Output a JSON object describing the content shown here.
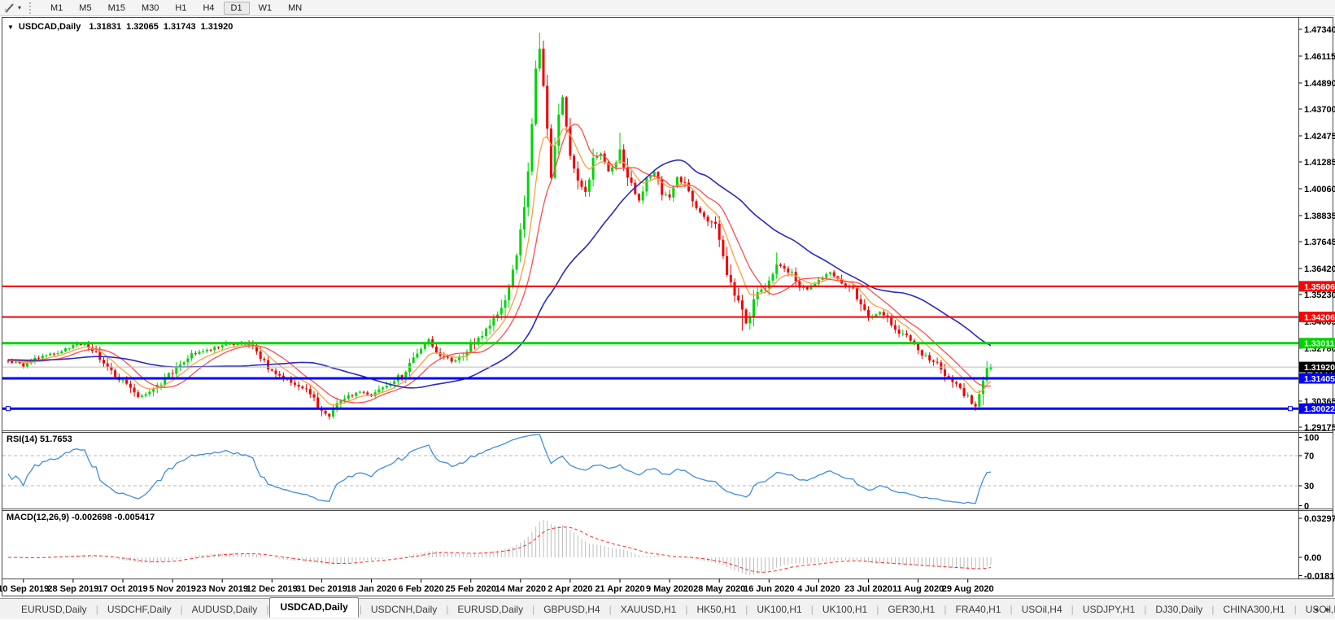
{
  "toolbar": {
    "timeframes": [
      "M1",
      "M5",
      "M15",
      "M30",
      "H1",
      "H4",
      "D1",
      "W1",
      "MN"
    ],
    "active_timeframe": "D1",
    "caret": "▾"
  },
  "chart": {
    "dropdown_glyph": "▼",
    "symbol_label": "USDCAD,Daily",
    "quote": {
      "open": "1.31831",
      "high": "1.32065",
      "low": "1.31743",
      "close": "1.31920"
    }
  },
  "price_axis": {
    "ticks": [
      "1.47340",
      "1.46115",
      "1.44890",
      "1.43700",
      "1.42475",
      "1.41285",
      "1.40060",
      "1.38835",
      "1.37645",
      "1.36420",
      "1.35230",
      "1.34005",
      "1.32780",
      "1.31555",
      "1.30365",
      "1.29175"
    ]
  },
  "levels": [
    {
      "price": 1.35606,
      "label": "1.35606",
      "color": "#ff0000",
      "thickness": 2,
      "selected": false
    },
    {
      "price": 1.34206,
      "label": "1.34206",
      "color": "#ff0000",
      "thickness": 2,
      "selected": false
    },
    {
      "price": 1.33011,
      "label": "1.33011",
      "color": "#00d300",
      "thickness": 3,
      "selected": false
    },
    {
      "price": 1.31405,
      "label": "1.31405",
      "color": "#0000ff",
      "thickness": 3,
      "selected": false
    },
    {
      "price": 1.30022,
      "label": "1.30022",
      "color": "#0000ff",
      "thickness": 3,
      "selected": true
    }
  ],
  "current_price": {
    "value": 1.3192,
    "label": "1.31920",
    "line_color": "#bdbdbd",
    "box_color": "#000000"
  },
  "rsi": {
    "label": "RSI(14) 51.7653",
    "period": 14,
    "value": 51.7653,
    "ticks": [
      "100",
      "70",
      "30",
      "0"
    ],
    "guide_levels": [
      70,
      30
    ],
    "line_color": "#3f8ede"
  },
  "macd": {
    "label": "MACD(12,26,9) -0.002698 -0.005417",
    "params": "12,26,9",
    "value": -0.002698,
    "signal": -0.005417,
    "ticks": [
      "0.032972",
      "0.00",
      "-0.018154"
    ],
    "hist_color": "#bdbdbd",
    "signal_color": "#ff2a2a"
  },
  "dates": [
    "10 Sep 2019",
    "28 Sep 2019",
    "17 Oct 2019",
    "5 Nov 2019",
    "23 Nov 2019",
    "12 Dec 2019",
    "31 Dec 2019",
    "18 Jan 2020",
    "6 Feb 2020",
    "25 Feb 2020",
    "14 Mar 2020",
    "2 Apr 2020",
    "21 Apr 2020",
    "9 May 2020",
    "28 May 2020",
    "16 Jun 2020",
    "4 Jul 2020",
    "23 Jul 2020",
    "11 Aug 2020",
    "29 Aug 2020"
  ],
  "tabs": {
    "items": [
      "EURUSD,Daily",
      "USDCHF,Daily",
      "AUDUSD,Daily",
      "USDCAD,Daily",
      "USDCNH,Daily",
      "EURUSD,Daily",
      "GBPUSD,H4",
      "XAUUSD,H1",
      "HK50,H1",
      "UK100,H1",
      "UK100,H1",
      "GER30,H1",
      "FRA40,H1",
      "USOil,H4",
      "USDJPY,H1",
      "DJ30,Daily",
      "CHINA300,H1",
      "USOil,H1"
    ],
    "active_index": 3,
    "scroll_left": "◂",
    "scroll_right": "▸"
  },
  "chart_data": {
    "type": "candlestick",
    "symbol": "USDCAD",
    "timeframe": "Daily",
    "candle_count": 258,
    "price_range": {
      "top": 1.477,
      "bottom": 1.2905
    },
    "colors": {
      "bull": "#00d40a",
      "bear": "#f00000",
      "ma_fast": "#ff9f40",
      "ma_mid": "#ff4d4d",
      "ma_slow": "#2a2ac4"
    },
    "moving_averages": [
      {
        "type": "ema",
        "period": 8,
        "color_key": "ma_fast"
      },
      {
        "type": "sma",
        "period": 13,
        "color_key": "ma_mid"
      },
      {
        "type": "sma",
        "period": 40,
        "color_key": "ma_slow"
      }
    ],
    "indicators": [
      {
        "name": "RSI",
        "period": 14,
        "current": 51.7653
      },
      {
        "name": "MACD",
        "fast": 12,
        "slow": 26,
        "signal": 9,
        "current": -0.002698,
        "current_signal": -0.005417
      }
    ],
    "last_candle": {
      "open": 1.31831,
      "high": 1.32065,
      "low": 1.31743,
      "close": 1.3192
    },
    "spikes": [
      {
        "i": 139,
        "high": 1.4718
      },
      {
        "i": 160,
        "high": 1.4262
      },
      {
        "i": 201,
        "high": 1.3715
      },
      {
        "i": 84,
        "low": 1.2952
      },
      {
        "i": 192,
        "low": 1.3358
      },
      {
        "i": 253,
        "low": 1.2992
      }
    ],
    "waypoints": [
      [
        0,
        1.3225
      ],
      [
        4,
        1.32
      ],
      [
        9,
        1.3245
      ],
      [
        14,
        1.3262
      ],
      [
        17,
        1.3288
      ],
      [
        20,
        1.3302
      ],
      [
        23,
        1.3258
      ],
      [
        26,
        1.3185
      ],
      [
        30,
        1.313
      ],
      [
        34,
        1.3052
      ],
      [
        38,
        1.3085
      ],
      [
        43,
        1.317
      ],
      [
        48,
        1.3245
      ],
      [
        52,
        1.3272
      ],
      [
        56,
        1.3295
      ],
      [
        60,
        1.33
      ],
      [
        64,
        1.3282
      ],
      [
        69,
        1.3172
      ],
      [
        74,
        1.3125
      ],
      [
        78,
        1.3082
      ],
      [
        82,
        1.2998
      ],
      [
        84,
        1.2962
      ],
      [
        87,
        1.304
      ],
      [
        91,
        1.3078
      ],
      [
        95,
        1.3062
      ],
      [
        99,
        1.3105
      ],
      [
        103,
        1.316
      ],
      [
        106,
        1.3235
      ],
      [
        108,
        1.3282
      ],
      [
        110,
        1.3312
      ],
      [
        113,
        1.3248
      ],
      [
        116,
        1.3222
      ],
      [
        119,
        1.3246
      ],
      [
        121,
        1.3285
      ],
      [
        124,
        1.3345
      ],
      [
        127,
        1.3412
      ],
      [
        129,
        1.3468
      ],
      [
        131,
        1.356
      ],
      [
        133,
        1.3728
      ],
      [
        135,
        1.392
      ],
      [
        136,
        1.4088
      ],
      [
        137,
        1.4285
      ],
      [
        138,
        1.458
      ],
      [
        139,
        1.464
      ],
      [
        140,
        1.448
      ],
      [
        141,
        1.4265
      ],
      [
        142,
        1.4068
      ],
      [
        143,
        1.418
      ],
      [
        144,
        1.435
      ],
      [
        145,
        1.442
      ],
      [
        146,
        1.43
      ],
      [
        147,
        1.4165
      ],
      [
        149,
        1.4035
      ],
      [
        151,
        1.3985
      ],
      [
        153,
        1.413
      ],
      [
        155,
        1.4168
      ],
      [
        157,
        1.408
      ],
      [
        159,
        1.4135
      ],
      [
        160,
        1.418
      ],
      [
        161,
        1.4105
      ],
      [
        163,
        1.402
      ],
      [
        165,
        1.3955
      ],
      [
        167,
        1.4045
      ],
      [
        169,
        1.4085
      ],
      [
        171,
        1.399
      ],
      [
        173,
        1.3968
      ],
      [
        175,
        1.4052
      ],
      [
        177,
        1.4028
      ],
      [
        179,
        1.3948
      ],
      [
        181,
        1.39
      ],
      [
        183,
        1.3868
      ],
      [
        185,
        1.3832
      ],
      [
        186,
        1.3768
      ],
      [
        187,
        1.3672
      ],
      [
        188,
        1.3608
      ],
      [
        190,
        1.3528
      ],
      [
        192,
        1.3445
      ],
      [
        193,
        1.339
      ],
      [
        194,
        1.3422
      ],
      [
        195,
        1.3488
      ],
      [
        196,
        1.3542
      ],
      [
        198,
        1.3562
      ],
      [
        199,
        1.3585
      ],
      [
        201,
        1.366
      ],
      [
        203,
        1.3645
      ],
      [
        205,
        1.3612
      ],
      [
        207,
        1.3565
      ],
      [
        209,
        1.3542
      ],
      [
        211,
        1.3575
      ],
      [
        213,
        1.3608
      ],
      [
        215,
        1.3625
      ],
      [
        217,
        1.3598
      ],
      [
        219,
        1.3565
      ],
      [
        221,
        1.3548
      ],
      [
        223,
        1.348
      ],
      [
        225,
        1.3418
      ],
      [
        228,
        1.344
      ],
      [
        231,
        1.3395
      ],
      [
        233,
        1.3355
      ],
      [
        235,
        1.333
      ],
      [
        237,
        1.329
      ],
      [
        239,
        1.3245
      ],
      [
        241,
        1.3228
      ],
      [
        243,
        1.3205
      ],
      [
        245,
        1.3162
      ],
      [
        247,
        1.3125
      ],
      [
        249,
        1.3085
      ],
      [
        251,
        1.3052
      ],
      [
        252,
        1.3022
      ],
      [
        253,
        1.3002
      ],
      [
        254,
        1.3075
      ],
      [
        255,
        1.3148
      ],
      [
        256,
        1.317
      ],
      [
        257,
        1.3192
      ]
    ]
  }
}
